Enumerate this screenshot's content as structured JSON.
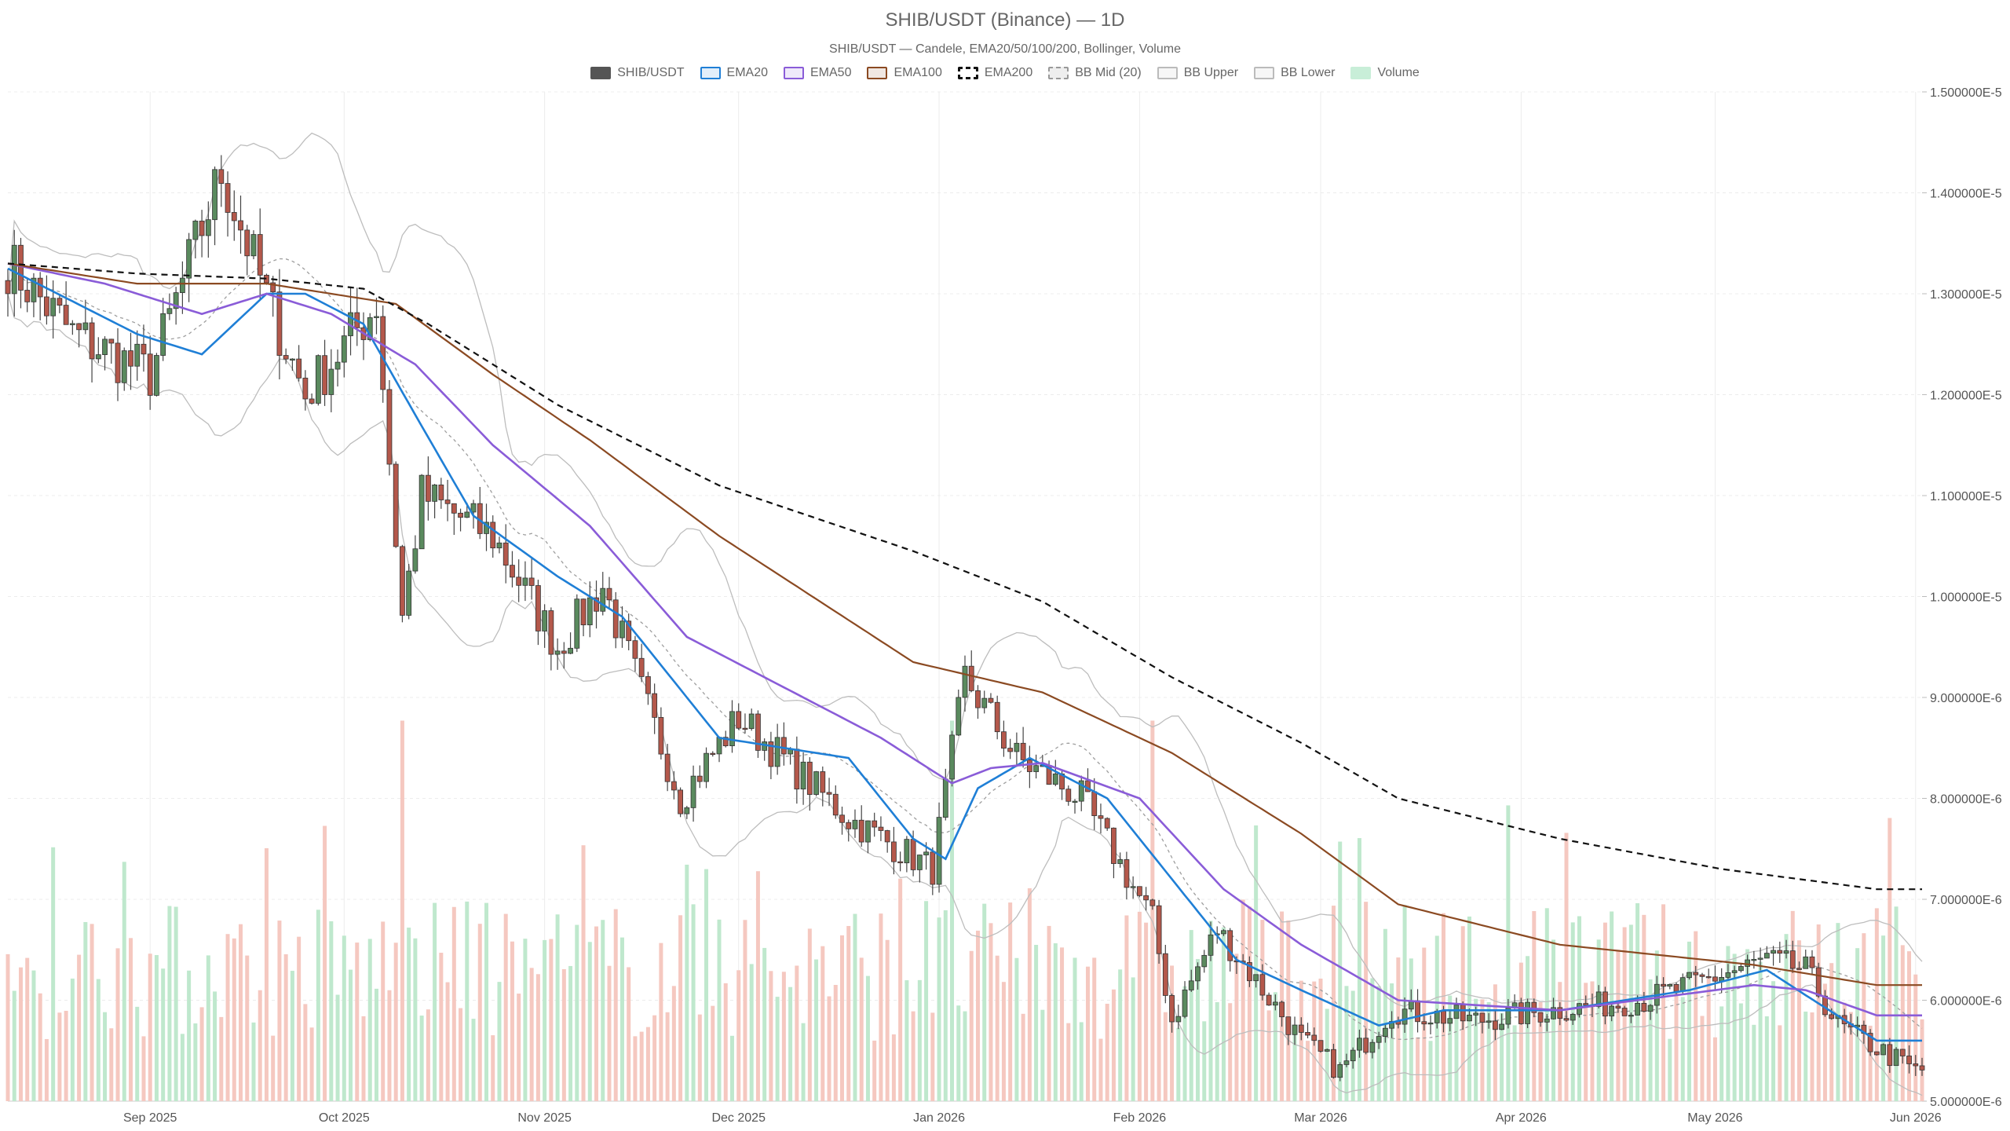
{
  "chart_data": {
    "type": "candlestick",
    "title": "SHIB/USDT (Binance) — 1D",
    "subtitle": "SHIB/USDT — Candele, EMA20/50/100/200, Bollinger, Volume",
    "ylim": [
      5e-06,
      1.5e-05
    ],
    "y_ticks": [
      "5.000000E-6",
      "6.000000E-6",
      "7.000000E-6",
      "8.000000E-6",
      "9.000000E-6",
      "1.000000E-5",
      "1.100000E-5",
      "1.200000E-5",
      "1.300000E-5",
      "1.400000E-5",
      "1.500000E-5"
    ],
    "x_range": [
      "2025-08-10",
      "2026-06-02"
    ],
    "x_ticks": [
      {
        "date": "2025-09-01",
        "label": "Sep 2025"
      },
      {
        "date": "2025-10-01",
        "label": "Oct 2025"
      },
      {
        "date": "2025-11-01",
        "label": "Nov 2025"
      },
      {
        "date": "2025-12-01",
        "label": "Dec 2025"
      },
      {
        "date": "2026-01-01",
        "label": "Jan 2026"
      },
      {
        "date": "2026-02-01",
        "label": "Feb 2026"
      },
      {
        "date": "2026-03-01",
        "label": "Mar 2026"
      },
      {
        "date": "2026-04-01",
        "label": "Apr 2026"
      },
      {
        "date": "2026-05-01",
        "label": "May 2026"
      },
      {
        "date": "2026-06-01",
        "label": "Jun 2026"
      }
    ],
    "grid": true,
    "legend_position": "top-center",
    "legend": [
      {
        "label": "SHIB/USDT",
        "style": "candle",
        "color": "#555555"
      },
      {
        "label": "EMA20",
        "style": "line",
        "color": "#1f7fd6"
      },
      {
        "label": "EMA50",
        "style": "line",
        "color": "#8a5cd8"
      },
      {
        "label": "EMA100",
        "style": "line",
        "color": "#8b4a22"
      },
      {
        "label": "EMA200",
        "style": "dashed",
        "color": "#111111"
      },
      {
        "label": "BB Mid (20)",
        "style": "dotted",
        "color": "#999999"
      },
      {
        "label": "BB Upper",
        "style": "line",
        "color": "#bbbbbb"
      },
      {
        "label": "BB Lower",
        "style": "line",
        "color": "#bbbbbb"
      },
      {
        "label": "Volume",
        "style": "bar",
        "color": "#c8eed8"
      }
    ],
    "colors": {
      "up": "#5a8a5e",
      "down": "#b4584b",
      "vol_up": "#bfe8cd",
      "vol_down": "#f5c8c0"
    },
    "key_closes": [
      {
        "date": "2025-08-10",
        "close": 1.33e-05
      },
      {
        "date": "2025-08-20",
        "close": 1.26e-05
      },
      {
        "date": "2025-09-01",
        "close": 1.22e-05
      },
      {
        "date": "2025-09-12",
        "close": 1.42e-05
      },
      {
        "date": "2025-09-20",
        "close": 1.28e-05
      },
      {
        "date": "2025-09-25",
        "close": 1.2e-05
      },
      {
        "date": "2025-10-06",
        "close": 1.29e-05
      },
      {
        "date": "2025-10-10",
        "close": 9.8e-06
      },
      {
        "date": "2025-10-13",
        "close": 1.1e-05
      },
      {
        "date": "2025-10-24",
        "close": 1.06e-05
      },
      {
        "date": "2025-11-03",
        "close": 9.5e-06
      },
      {
        "date": "2025-11-10",
        "close": 1.01e-05
      },
      {
        "date": "2025-11-22",
        "close": 8e-06
      },
      {
        "date": "2025-12-01",
        "close": 8.8e-06
      },
      {
        "date": "2025-12-18",
        "close": 7.8e-06
      },
      {
        "date": "2025-12-31",
        "close": 7.3e-06
      },
      {
        "date": "2026-01-05",
        "close": 9.2e-06
      },
      {
        "date": "2026-01-13",
        "close": 8.4e-06
      },
      {
        "date": "2026-01-23",
        "close": 8e-06
      },
      {
        "date": "2026-02-03",
        "close": 6.8e-06
      },
      {
        "date": "2026-02-06",
        "close": 5.8e-06
      },
      {
        "date": "2026-02-13",
        "close": 6.7e-06
      },
      {
        "date": "2026-02-26",
        "close": 5.6e-06
      },
      {
        "date": "2026-03-04",
        "close": 5.3e-06
      },
      {
        "date": "2026-03-12",
        "close": 5.9e-06
      },
      {
        "date": "2026-03-25",
        "close": 5.8e-06
      },
      {
        "date": "2026-04-06",
        "close": 5.9e-06
      },
      {
        "date": "2026-04-20",
        "close": 6e-06
      },
      {
        "date": "2026-05-09",
        "close": 6.4e-06
      },
      {
        "date": "2026-05-15",
        "close": 6.3e-06
      },
      {
        "date": "2026-05-20",
        "close": 5.75e-06
      },
      {
        "date": "2026-05-28",
        "close": 5.45e-06
      },
      {
        "date": "2026-06-01",
        "close": 5.3e-06
      }
    ],
    "ema_points": {
      "EMA20": [
        [
          0,
          1.325e-05
        ],
        [
          20,
          1.26e-05
        ],
        [
          30,
          1.24e-05
        ],
        [
          40,
          1.3e-05
        ],
        [
          46,
          1.3e-05
        ],
        [
          55,
          1.27e-05
        ],
        [
          63,
          1.18e-05
        ],
        [
          72,
          1.08e-05
        ],
        [
          85,
          1.02e-05
        ],
        [
          95,
          9.8e-06
        ],
        [
          110,
          8.6e-06
        ],
        [
          130,
          8.4e-06
        ],
        [
          140,
          7.6e-06
        ],
        [
          145,
          7.4e-06
        ],
        [
          150,
          8.1e-06
        ],
        [
          158,
          8.4e-06
        ],
        [
          170,
          8e-06
        ],
        [
          180,
          7.2e-06
        ],
        [
          190,
          6.4e-06
        ],
        [
          200,
          6.1e-06
        ],
        [
          212,
          5.75e-06
        ],
        [
          222,
          5.9e-06
        ],
        [
          240,
          5.9e-06
        ],
        [
          260,
          6.1e-06
        ],
        [
          272,
          6.3e-06
        ],
        [
          278,
          6.05e-06
        ],
        [
          289,
          5.6e-06
        ]
      ],
      "EMA50": [
        [
          0,
          1.33e-05
        ],
        [
          15,
          1.31e-05
        ],
        [
          30,
          1.28e-05
        ],
        [
          40,
          1.3e-05
        ],
        [
          50,
          1.28e-05
        ],
        [
          63,
          1.23e-05
        ],
        [
          75,
          1.15e-05
        ],
        [
          90,
          1.07e-05
        ],
        [
          105,
          9.6e-06
        ],
        [
          120,
          9.1e-06
        ],
        [
          135,
          8.6e-06
        ],
        [
          146,
          8.15e-06
        ],
        [
          152,
          8.3e-06
        ],
        [
          160,
          8.35e-06
        ],
        [
          175,
          8e-06
        ],
        [
          188,
          7.1e-06
        ],
        [
          200,
          6.55e-06
        ],
        [
          215,
          6e-06
        ],
        [
          240,
          5.9e-06
        ],
        [
          270,
          6.15e-06
        ],
        [
          278,
          6.1e-06
        ],
        [
          289,
          5.85e-06
        ]
      ],
      "EMA100": [
        [
          0,
          1.33e-05
        ],
        [
          20,
          1.31e-05
        ],
        [
          40,
          1.31e-05
        ],
        [
          60,
          1.29e-05
        ],
        [
          75,
          1.22e-05
        ],
        [
          90,
          1.155e-05
        ],
        [
          110,
          1.06e-05
        ],
        [
          140,
          9.35e-06
        ],
        [
          160,
          9.05e-06
        ],
        [
          180,
          8.45e-06
        ],
        [
          200,
          7.65e-06
        ],
        [
          215,
          6.95e-06
        ],
        [
          240,
          6.55e-06
        ],
        [
          270,
          6.35e-06
        ],
        [
          289,
          6.15e-06
        ]
      ],
      "EMA200": [
        [
          0,
          1.33e-05
        ],
        [
          20,
          1.32e-05
        ],
        [
          40,
          1.315e-05
        ],
        [
          55,
          1.305e-05
        ],
        [
          65,
          1.27e-05
        ],
        [
          85,
          1.19e-05
        ],
        [
          110,
          1.11e-05
        ],
        [
          140,
          1.045e-05
        ],
        [
          160,
          9.95e-06
        ],
        [
          180,
          9.2e-06
        ],
        [
          200,
          8.55e-06
        ],
        [
          215,
          8e-06
        ],
        [
          240,
          7.6e-06
        ],
        [
          265,
          7.3e-06
        ],
        [
          289,
          7.1e-06
        ]
      ]
    }
  }
}
